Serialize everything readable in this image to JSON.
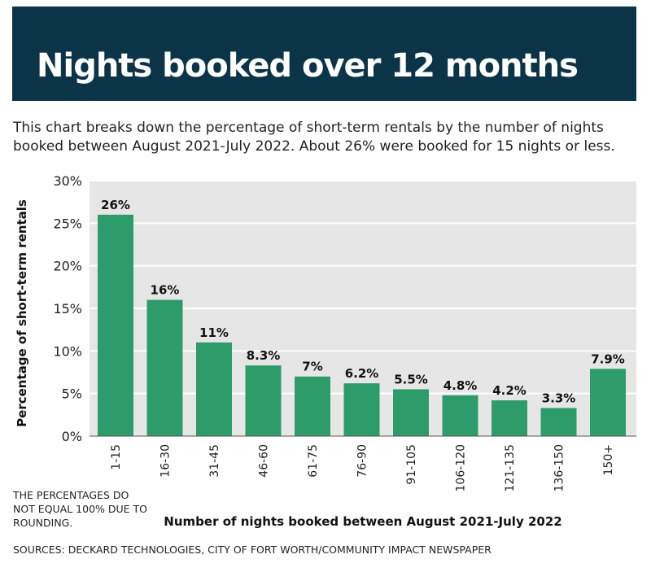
{
  "header": {
    "title": "Nights booked over 12 months",
    "subtitle": "This chart breaks down the percentage of short-term rentals by the number of nights booked between August 2021-July 2022. About 26% were booked for 15 nights or less."
  },
  "note": "THE PERCENTAGES DO NOT EQUAL 100% DUE TO ROUNDING.",
  "sources": "SOURCES: DECKARD TECHNOLOGIES, CITY OF FORT WORTH/COMMUNITY IMPACT NEWSPAPER",
  "colors": {
    "header_bg": "#0c3449",
    "bar": "#2e9b6b",
    "plot_bg": "#e6e6e6",
    "grid": "#ffffff"
  },
  "chart_data": {
    "type": "bar",
    "categories": [
      "1-15",
      "16-30",
      "31-45",
      "46-60",
      "61-75",
      "76-90",
      "91-105",
      "106-120",
      "121-135",
      "136-150",
      "150+"
    ],
    "values": [
      26,
      16,
      11,
      8.3,
      7,
      6.2,
      5.5,
      4.8,
      4.2,
      3.3,
      7.9
    ],
    "data_labels": [
      "26%",
      "16%",
      "11%",
      "8.3%",
      "7%",
      "6.2%",
      "5.5%",
      "4.8%",
      "4.2%",
      "3.3%",
      "7.9%"
    ],
    "y_ticks": [
      0,
      5,
      10,
      15,
      20,
      25,
      30
    ],
    "y_tick_labels": [
      "0%",
      "5%",
      "10%",
      "15%",
      "20%",
      "25%",
      "30%"
    ],
    "ylim": [
      0,
      30
    ],
    "xlabel": "Number of nights booked between August 2021-July 2022",
    "ylabel": "Percentage of short-term rentals",
    "grid": true
  }
}
